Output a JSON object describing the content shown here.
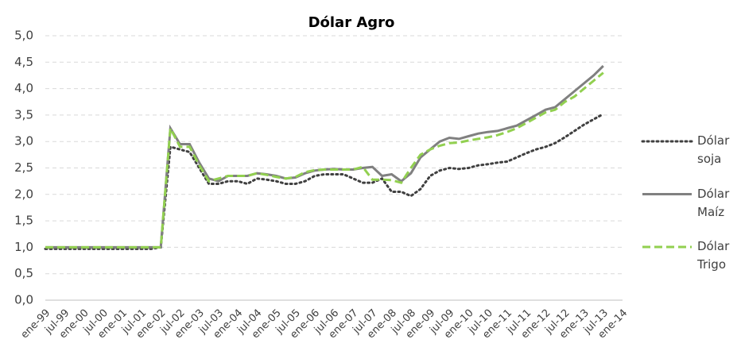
{
  "chart_data": {
    "type": "line",
    "title": "Dólar Agro",
    "categories": [
      "ene-99",
      null,
      "jul-99",
      null,
      "ene-00",
      null,
      "jul-00",
      null,
      "ene-01",
      null,
      "jul-01",
      null,
      "ene-02",
      null,
      "jul-02",
      null,
      "ene-03",
      null,
      "jul-03",
      null,
      "ene-04",
      null,
      "jul-04",
      null,
      "ene-05",
      null,
      "jul-05",
      null,
      "ene-06",
      null,
      "jul-06",
      null,
      "ene-07",
      null,
      "jul-07",
      null,
      "ene-08",
      null,
      "jul-08",
      null,
      "ene-09",
      null,
      "jul-09",
      null,
      "ene-10",
      null,
      "jul-10",
      null,
      "ene-11",
      null,
      "jul-11",
      null,
      "ene-12",
      null,
      "jul-12",
      null,
      "ene-13",
      null,
      "jul-13",
      null,
      "ene-14"
    ],
    "series": [
      {
        "name": "Dólar soja",
        "color": "#404040",
        "dash": "dotted",
        "values": [
          0.97,
          0.97,
          0.97,
          0.97,
          0.97,
          0.97,
          0.97,
          0.97,
          0.97,
          0.97,
          0.97,
          0.97,
          1.0,
          2.9,
          2.85,
          2.8,
          2.5,
          2.2,
          2.2,
          2.25,
          2.25,
          2.2,
          2.3,
          2.28,
          2.25,
          2.2,
          2.2,
          2.25,
          2.35,
          2.38,
          2.38,
          2.38,
          2.3,
          2.22,
          2.22,
          2.3,
          2.05,
          2.05,
          1.97,
          2.1,
          2.35,
          2.45,
          2.5,
          2.48,
          2.5,
          2.55,
          2.57,
          2.6,
          2.62,
          2.7,
          2.78,
          2.85,
          2.9,
          2.97,
          3.08,
          3.2,
          3.32,
          3.42,
          3.52,
          null,
          null
        ]
      },
      {
        "name": "Dólar Maíz",
        "color": "#808080",
        "dash": "solid",
        "values": [
          1.0,
          1.0,
          1.0,
          1.0,
          1.0,
          1.0,
          1.0,
          1.0,
          1.0,
          1.0,
          1.0,
          1.0,
          1.0,
          3.25,
          2.95,
          2.95,
          2.6,
          2.3,
          2.25,
          2.35,
          2.35,
          2.35,
          2.4,
          2.38,
          2.35,
          2.3,
          2.32,
          2.4,
          2.45,
          2.47,
          2.48,
          2.47,
          2.47,
          2.5,
          2.52,
          2.35,
          2.38,
          2.25,
          2.4,
          2.7,
          2.85,
          3.0,
          3.07,
          3.05,
          3.1,
          3.15,
          3.18,
          3.2,
          3.25,
          3.3,
          3.4,
          3.5,
          3.6,
          3.65,
          3.8,
          3.95,
          4.1,
          4.25,
          4.43,
          null,
          null
        ]
      },
      {
        "name": "Dólar Trigo",
        "color": "#92d050",
        "dash": "dashed",
        "values": [
          1.0,
          1.0,
          1.0,
          1.0,
          1.0,
          1.0,
          1.0,
          1.0,
          1.0,
          1.0,
          1.0,
          1.0,
          1.0,
          3.25,
          2.9,
          2.9,
          2.55,
          2.25,
          2.3,
          2.35,
          2.35,
          2.35,
          2.4,
          2.37,
          2.33,
          2.3,
          2.33,
          2.42,
          2.46,
          2.47,
          2.47,
          2.47,
          2.47,
          2.52,
          2.28,
          2.28,
          2.27,
          2.22,
          2.5,
          2.75,
          2.85,
          2.92,
          2.97,
          2.98,
          3.02,
          3.05,
          3.08,
          3.12,
          3.18,
          3.25,
          3.35,
          3.45,
          3.55,
          3.6,
          3.75,
          3.85,
          4.0,
          4.15,
          4.3,
          null,
          null
        ]
      }
    ],
    "ylim": [
      0,
      5
    ],
    "yticks": [
      {
        "value": 0,
        "label": "0,0"
      },
      {
        "value": 0.5,
        "label": "0,5"
      },
      {
        "value": 1,
        "label": "1,0"
      },
      {
        "value": 1.5,
        "label": "1,5"
      },
      {
        "value": 2,
        "label": "2,0"
      },
      {
        "value": 2.5,
        "label": "2,5"
      },
      {
        "value": 3,
        "label": "3,0"
      },
      {
        "value": 3.5,
        "label": "3,5"
      },
      {
        "value": 4,
        "label": "4,0"
      },
      {
        "value": 4.5,
        "label": "4,5"
      },
      {
        "value": 5,
        "label": "5,0"
      }
    ],
    "grid": true,
    "legend": "right"
  }
}
